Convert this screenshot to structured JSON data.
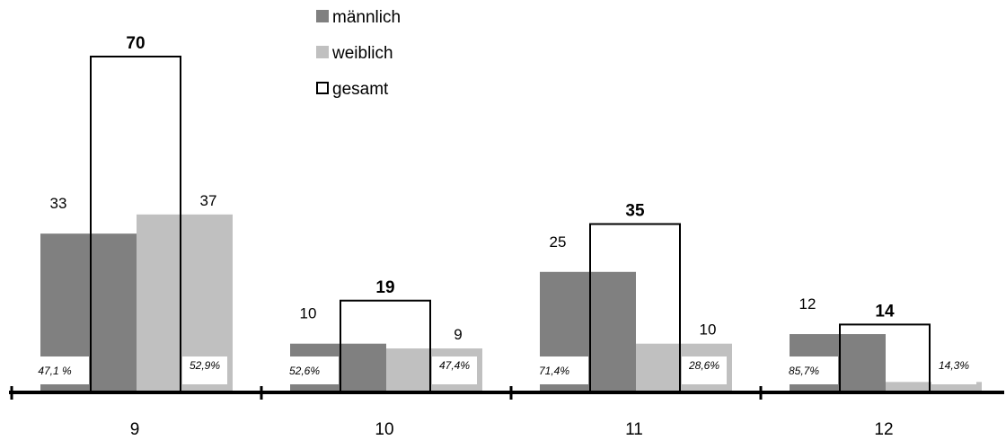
{
  "chart_data": {
    "type": "bar",
    "categories": [
      "9",
      "10",
      "11",
      "12"
    ],
    "series": [
      {
        "name": "männlich",
        "values": [
          33,
          10,
          25,
          12
        ],
        "share_labels": [
          "47,1 %",
          "52,6%",
          "71,4%",
          "85,7%"
        ],
        "color": "#808080"
      },
      {
        "name": "weiblich",
        "values": [
          37,
          9,
          10,
          2
        ],
        "share_labels": [
          "52,9%",
          "47,4%",
          "28,6%",
          "14,3%"
        ],
        "color": "#c0c0c0"
      },
      {
        "name": "gesamt",
        "values": [
          70,
          19,
          35,
          14
        ],
        "style": "outline",
        "color": "#000000"
      }
    ],
    "ylim": [
      0,
      70
    ],
    "grid": false,
    "legend_position": "top-center",
    "title": "",
    "xlabel": "",
    "ylabel": ""
  }
}
